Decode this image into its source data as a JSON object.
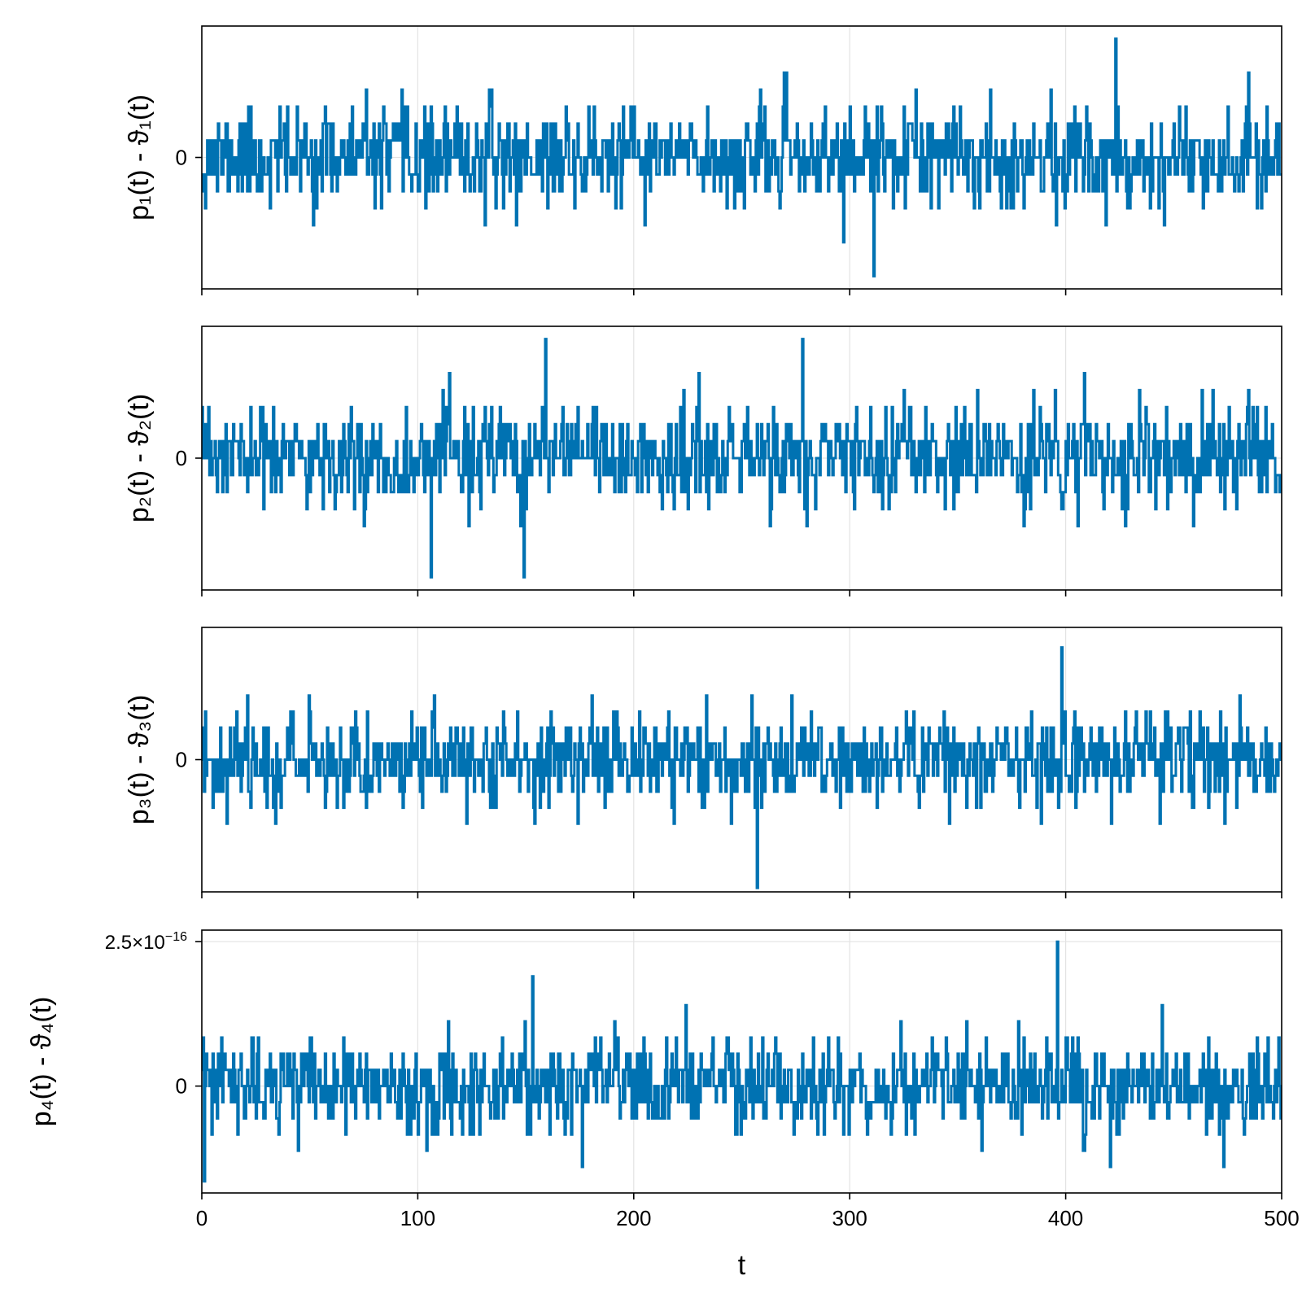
{
  "chart_data": [
    {
      "type": "line",
      "ylabel": "p₁(t) - ϑ₁(t)",
      "yticks": [
        {
          "value": 0,
          "label": "0"
        }
      ],
      "ylim": [
        -1.55,
        1.55
      ],
      "xlim": [
        0,
        500
      ],
      "xticks": [
        0,
        100,
        200,
        300,
        400,
        500
      ],
      "x_tick_labels_visible": false,
      "grid": true,
      "series": [
        {
          "color": "#0072B2",
          "x_start": 0,
          "x_end": 500,
          "n_points": 1000,
          "value_unit": 0.2,
          "seed": 11,
          "peaks": [
            {
              "x": 423,
              "y": 1.4
            },
            {
              "x": 311,
              "y": -1.4
            }
          ]
        }
      ]
    },
    {
      "type": "line",
      "ylabel": "p₂(t) - ϑ₂(t)",
      "yticks": [
        {
          "value": 0,
          "label": "0"
        }
      ],
      "ylim": [
        -1.55,
        1.55
      ],
      "xlim": [
        0,
        500
      ],
      "xticks": [
        0,
        100,
        200,
        300,
        400,
        500
      ],
      "x_tick_labels_visible": false,
      "grid": true,
      "series": [
        {
          "color": "#0072B2",
          "x_start": 0,
          "x_end": 500,
          "n_points": 1000,
          "value_unit": 0.2,
          "seed": 23,
          "peaks": [
            {
              "x": 159,
              "y": 1.4
            },
            {
              "x": 278,
              "y": 1.4
            },
            {
              "x": 106,
              "y": -1.4
            },
            {
              "x": 149,
              "y": -1.4
            }
          ]
        }
      ]
    },
    {
      "type": "line",
      "ylabel": "p₃(t) - ϑ₃(t)",
      "yticks": [
        {
          "value": 0,
          "label": "0"
        }
      ],
      "ylim": [
        -1.65,
        1.65
      ],
      "xlim": [
        0,
        500
      ],
      "xticks": [
        0,
        100,
        200,
        300,
        400,
        500
      ],
      "x_tick_labels_visible": false,
      "grid": true,
      "series": [
        {
          "color": "#0072B2",
          "x_start": 0,
          "x_end": 500,
          "n_points": 1000,
          "value_unit": 0.2,
          "seed": 37,
          "peaks": [
            {
              "x": 398,
              "y": 1.4
            },
            {
              "x": 257,
              "y": -1.6
            }
          ]
        }
      ]
    },
    {
      "type": "line",
      "ylabel": "p₄(t) - ϑ₄(t)",
      "yticks": [
        {
          "value": 0,
          "label": "0"
        },
        {
          "value": 2.5e-16,
          "label_base": "2.5×10",
          "label_exp": "−16"
        }
      ],
      "ylim": [
        -1.85e-16,
        2.7e-16
      ],
      "xlim": [
        0,
        500
      ],
      "xticks": [
        0,
        100,
        200,
        300,
        400,
        500
      ],
      "x_tick_labels_visible": true,
      "xlabel": "t",
      "grid": true,
      "series": [
        {
          "color": "#0072B2",
          "x_start": 0,
          "x_end": 500,
          "n_points": 1000,
          "value_unit": 2.8e-17,
          "seed": 53,
          "peaks": [
            {
              "x": 396,
              "y": 2.5e-16
            },
            {
              "x": 153,
              "y": 1.9e-16
            },
            {
              "x": 1,
              "y": -1.65e-16
            }
          ]
        }
      ]
    }
  ]
}
